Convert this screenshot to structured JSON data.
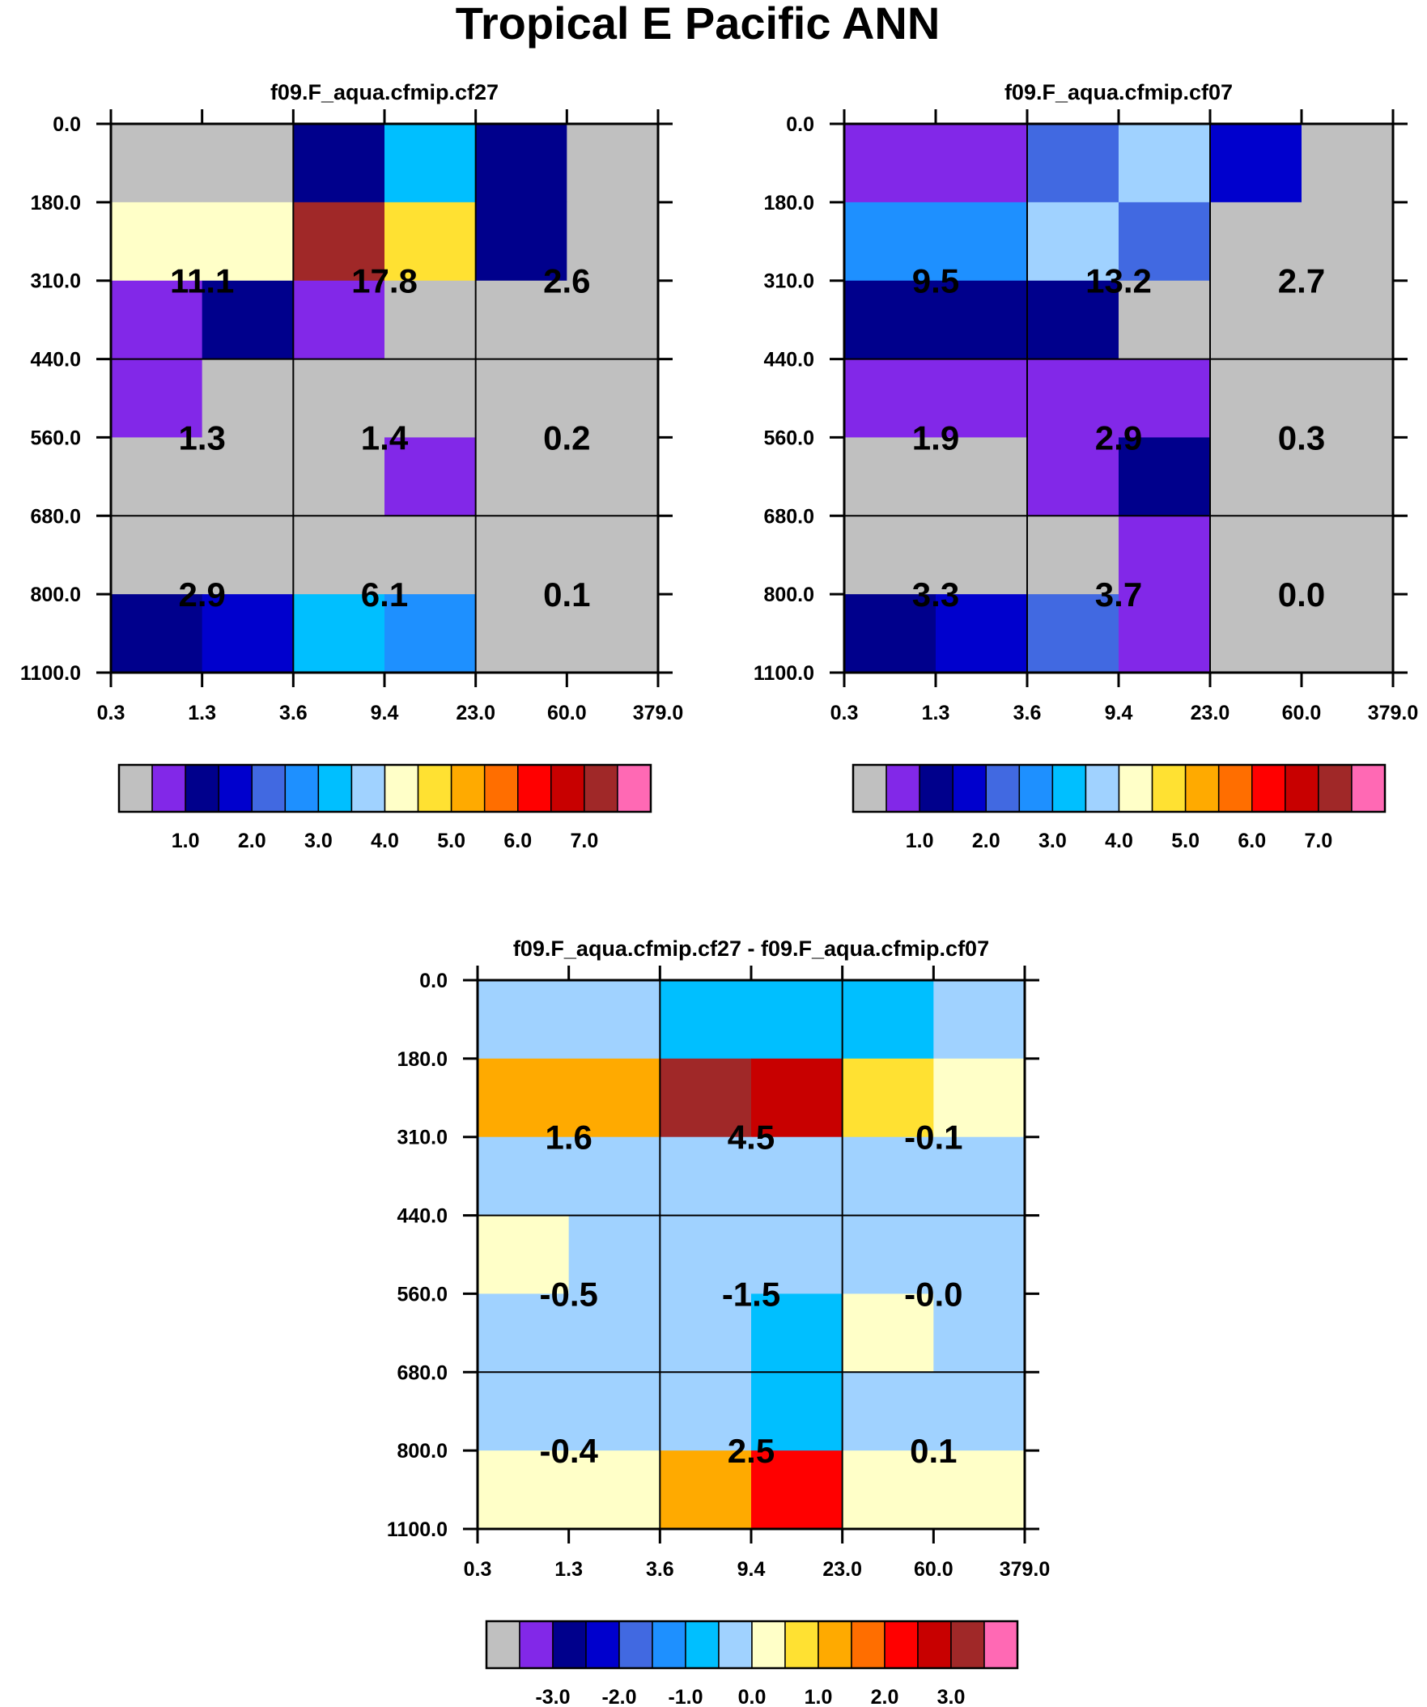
{
  "title": "Tropical E Pacific ANN",
  "palette_abs": [
    "#c0c0c0",
    "#8228e8",
    "#00008c",
    "#0000cd",
    "#4169e1",
    "#1e90ff",
    "#00bfff",
    "#a0d2ff",
    "#ffffc8",
    "#ffe132",
    "#ffaa00",
    "#ff6e00",
    "#ff0000",
    "#c80000",
    "#a02828",
    "#ff69b4"
  ],
  "palette_diff": [
    "#c0c0c0",
    "#8228e8",
    "#00008c",
    "#0000cd",
    "#4169e1",
    "#1e90ff",
    "#00bfff",
    "#a0d2ff",
    "#ffffc8",
    "#ffe132",
    "#ffaa00",
    "#ff6e00",
    "#ff0000",
    "#c80000",
    "#a02828",
    "#ff69b4"
  ],
  "chart_data": [
    {
      "type": "heatmap",
      "title": "f09.F_aqua.cfmip.cf27",
      "x_ticks": [
        "0.3",
        "1.3",
        "3.6",
        "9.4",
        "23.0",
        "60.0",
        "379.0"
      ],
      "y_ticks": [
        "0.0",
        "180.0",
        "310.0",
        "440.0",
        "560.0",
        "680.0",
        "800.0",
        "1100.0"
      ],
      "cells": [
        [
          0,
          0,
          2,
          6,
          2,
          0
        ],
        [
          8,
          8,
          14,
          9,
          2,
          0
        ],
        [
          1,
          2,
          1,
          0,
          0,
          0
        ],
        [
          1,
          0,
          0,
          0,
          0,
          0
        ],
        [
          0,
          0,
          0,
          1,
          0,
          0
        ],
        [
          0,
          0,
          0,
          0,
          0,
          0
        ],
        [
          2,
          3,
          6,
          5,
          0,
          0
        ]
      ],
      "cell_values": [
        [
          "11.1",
          "17.8",
          "2.6"
        ],
        [
          "1.3",
          "1.4",
          "0.2"
        ],
        [
          "2.9",
          "6.1",
          "0.1"
        ]
      ],
      "colorbar_labels": [
        "1.0",
        "2.0",
        "3.0",
        "4.0",
        "5.0",
        "6.0",
        "7.0"
      ]
    },
    {
      "type": "heatmap",
      "title": "f09.F_aqua.cfmip.cf07",
      "x_ticks": [
        "0.3",
        "1.3",
        "3.6",
        "9.4",
        "23.0",
        "60.0",
        "379.0"
      ],
      "y_ticks": [
        "0.0",
        "180.0",
        "310.0",
        "440.0",
        "560.0",
        "680.0",
        "800.0",
        "1100.0"
      ],
      "cells": [
        [
          1,
          1,
          4,
          7,
          3,
          0
        ],
        [
          5,
          5,
          7,
          4,
          0,
          0
        ],
        [
          2,
          2,
          2,
          0,
          0,
          0
        ],
        [
          1,
          1,
          1,
          1,
          0,
          0
        ],
        [
          0,
          0,
          1,
          2,
          0,
          0
        ],
        [
          0,
          0,
          0,
          1,
          0,
          0
        ],
        [
          2,
          3,
          4,
          1,
          0,
          0
        ]
      ],
      "cell_values": [
        [
          "9.5",
          "13.2",
          "2.7"
        ],
        [
          "1.9",
          "2.9",
          "0.3"
        ],
        [
          "3.3",
          "3.7",
          "0.0"
        ]
      ],
      "colorbar_labels": [
        "1.0",
        "2.0",
        "3.0",
        "4.0",
        "5.0",
        "6.0",
        "7.0"
      ]
    },
    {
      "type": "heatmap",
      "title": "f09.F_aqua.cfmip.cf27 - f09.F_aqua.cfmip.cf07",
      "x_ticks": [
        "0.3",
        "1.3",
        "3.6",
        "9.4",
        "23.0",
        "60.0",
        "379.0"
      ],
      "y_ticks": [
        "0.0",
        "180.0",
        "310.0",
        "440.0",
        "560.0",
        "680.0",
        "800.0",
        "1100.0"
      ],
      "cells": [
        [
          7,
          7,
          6,
          6,
          6,
          7
        ],
        [
          10,
          10,
          14,
          13,
          9,
          8
        ],
        [
          7,
          7,
          7,
          7,
          7,
          7
        ],
        [
          8,
          7,
          7,
          7,
          7,
          7
        ],
        [
          7,
          7,
          7,
          6,
          8,
          7
        ],
        [
          7,
          7,
          7,
          6,
          7,
          7
        ],
        [
          8,
          8,
          10,
          12,
          8,
          8
        ]
      ],
      "cell_values": [
        [
          "1.6",
          "4.5",
          "-0.1"
        ],
        [
          "-0.5",
          "-1.5",
          "-0.0"
        ],
        [
          "-0.4",
          "2.5",
          "0.1"
        ]
      ],
      "colorbar_labels": [
        "-3.0",
        "-2.0",
        "-1.0",
        "0.0",
        "1.0",
        "2.0",
        "3.0"
      ]
    }
  ]
}
